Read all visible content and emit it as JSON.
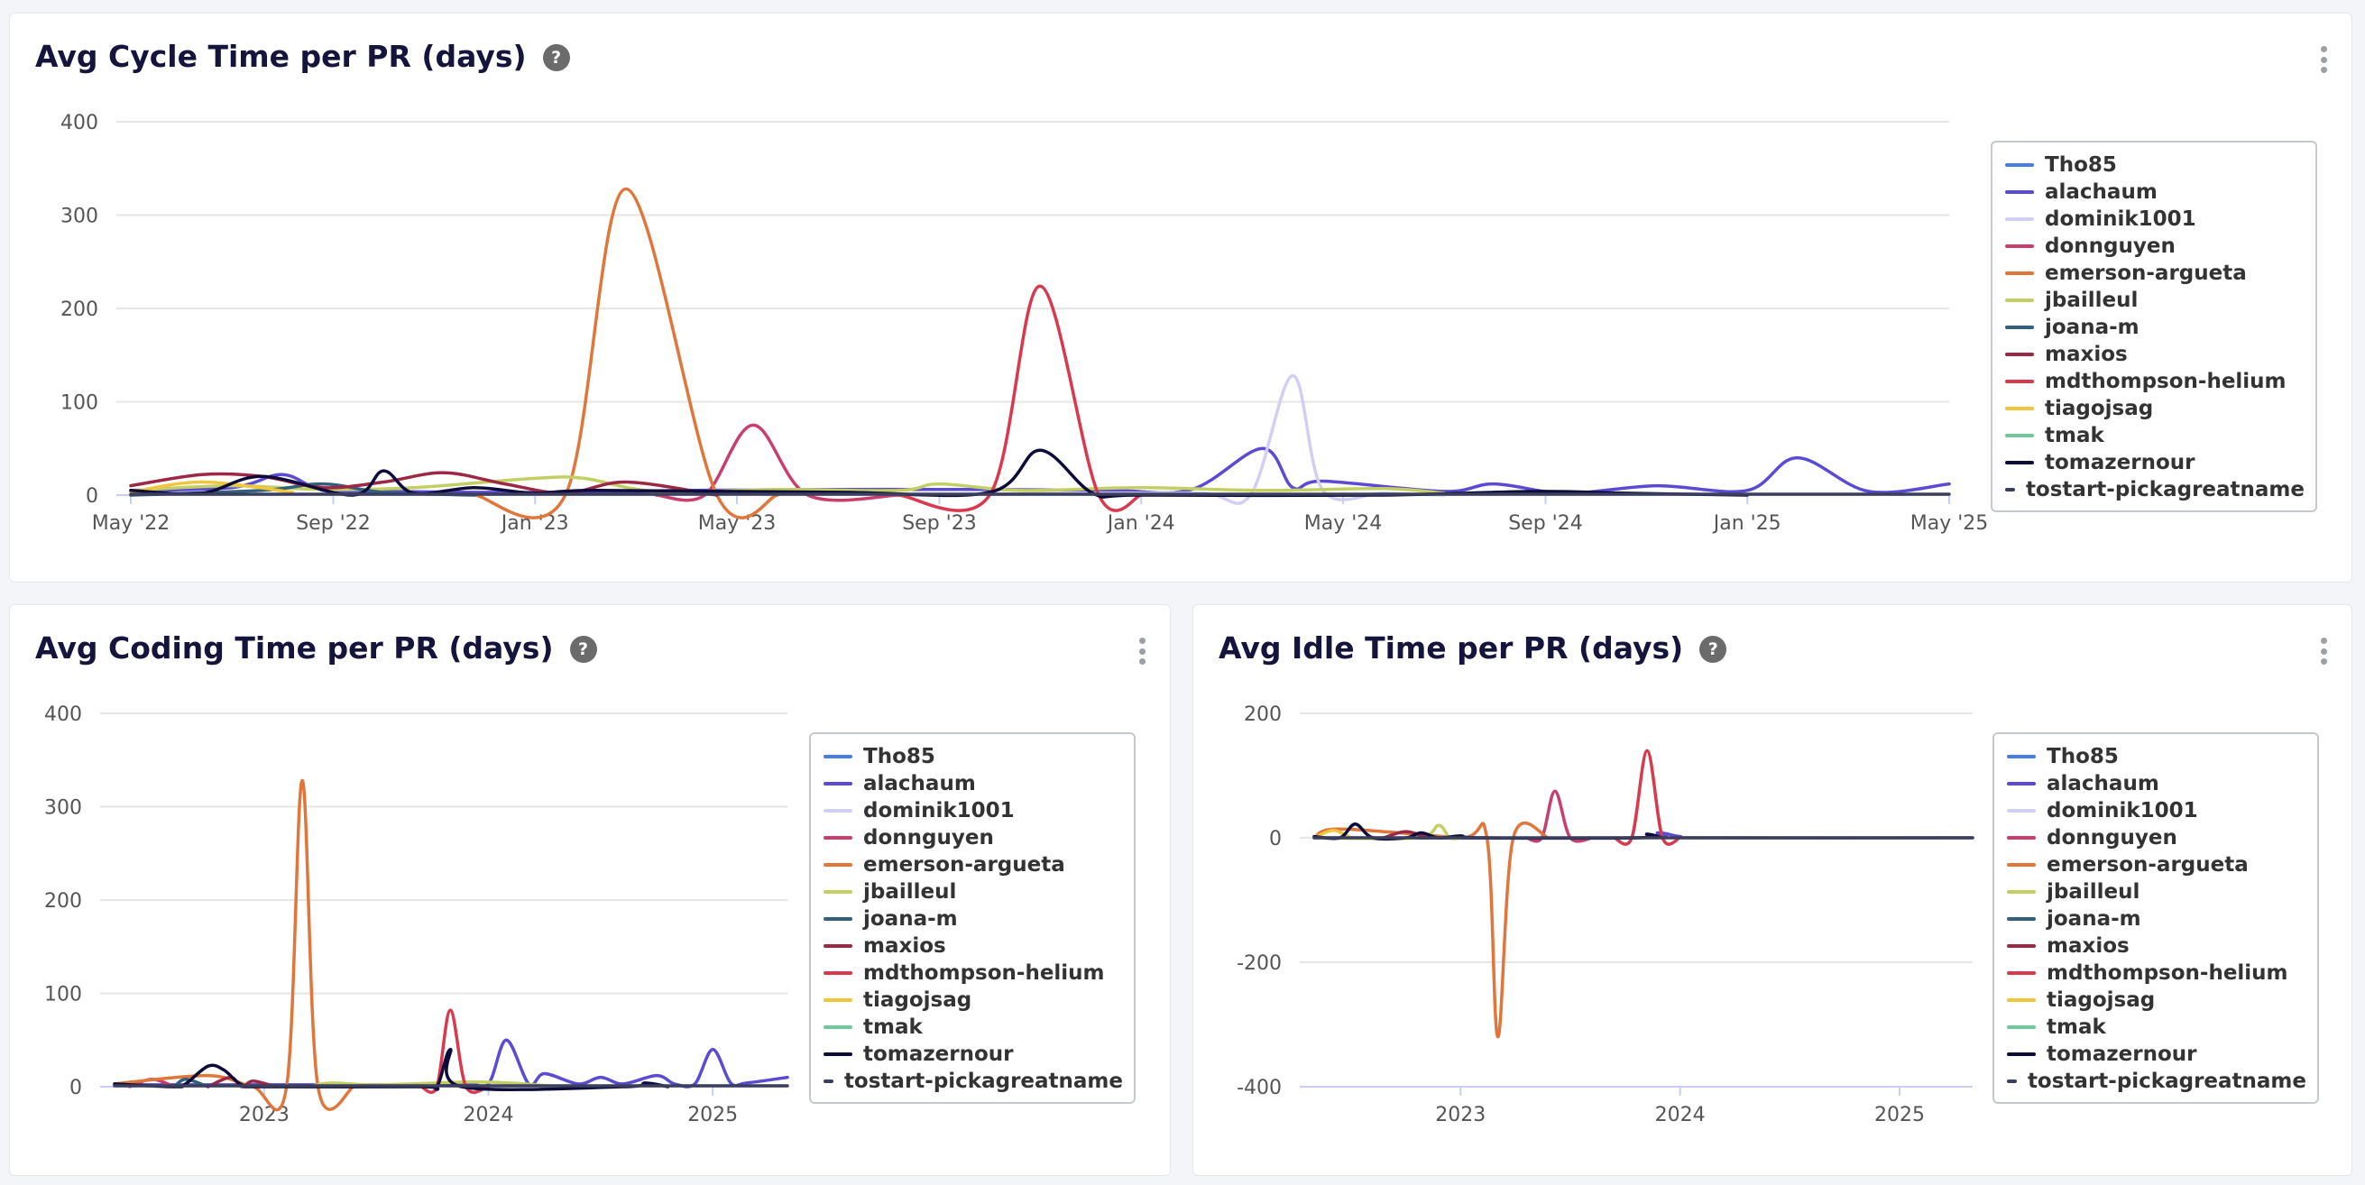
{
  "series_colors": {
    "Tho85": "#4a7de3",
    "alachaum": "#5b4bd4",
    "dominik1001": "#d2cff5",
    "donnguyen": "#c93d6f",
    "emerson-argueta": "#e0763a",
    "jbailleul": "#c4cf63",
    "joana-m": "#31607c",
    "maxios": "#9c2845",
    "mdthompson-helium": "#d8394e",
    "tiagojsag": "#f0c63d",
    "tmak": "#6fc99a",
    "tomazernour": "#0d0b3a",
    "tostart-pickagreatname": "#3b3f5e"
  },
  "legend_items": [
    "Tho85",
    "alachaum",
    "dominik1001",
    "donnguyen",
    "emerson-argueta",
    "jbailleul",
    "joana-m",
    "maxios",
    "mdthompson-helium",
    "tiagojsag",
    "tmak",
    "tomazernour",
    "tostart-pickagreatname"
  ],
  "chart_data": [
    {
      "id": "cycle",
      "type": "line",
      "title": "Avg Cycle Time per PR (days)",
      "x_ticks": [
        {
          "value": 2022.333,
          "label": "May '22"
        },
        {
          "value": 2022.667,
          "label": "Sep '22"
        },
        {
          "value": 2023.0,
          "label": "Jan '23"
        },
        {
          "value": 2023.333,
          "label": "May '23"
        },
        {
          "value": 2023.667,
          "label": "Sep '23"
        },
        {
          "value": 2024.0,
          "label": "Jan '24"
        },
        {
          "value": 2024.333,
          "label": "May '24"
        },
        {
          "value": 2024.667,
          "label": "Sep '24"
        },
        {
          "value": 2025.0,
          "label": "Jan '25"
        },
        {
          "value": 2025.333,
          "label": "May '25"
        }
      ],
      "y_ticks": [
        0,
        100,
        200,
        300,
        400
      ],
      "xlim": [
        2022.333,
        2025.333
      ],
      "ylim": [
        0,
        400
      ],
      "legend": "right",
      "grid": true,
      "series": [
        {
          "name": "alachaum",
          "x": [
            2022.333,
            2022.5,
            2022.583,
            2022.65,
            2022.75,
            2022.9,
            2023.1,
            2023.25,
            2023.5,
            2023.75,
            2023.95,
            2024.083,
            2024.2,
            2024.25,
            2024.3,
            2024.5,
            2024.583,
            2024.7,
            2024.85,
            2025.0,
            2025.083,
            2025.2,
            2025.333
          ],
          "y": [
            5,
            8,
            22,
            5,
            4,
            3,
            3,
            5,
            6,
            6,
            5,
            6,
            50,
            8,
            15,
            4,
            12,
            2,
            10,
            5,
            40,
            4,
            12
          ]
        },
        {
          "name": "dominik1001",
          "x": [
            2023.6,
            2023.9,
            2024.1,
            2024.18,
            2024.25,
            2024.3,
            2024.4,
            2024.5
          ],
          "y": [
            0,
            2,
            2,
            0,
            128,
            5,
            2,
            0
          ]
        },
        {
          "name": "donnguyen",
          "x": [
            2023.2,
            2023.28,
            2023.36,
            2023.45,
            2023.6
          ],
          "y": [
            0,
            0,
            75,
            0,
            0
          ]
        },
        {
          "name": "emerson-argueta",
          "x": [
            2022.9,
            2023.05,
            2023.15,
            2023.3,
            2023.4
          ],
          "y": [
            0,
            0,
            328,
            0,
            0
          ]
        },
        {
          "name": "jbailleul",
          "x": [
            2022.333,
            2022.5,
            2022.65,
            2022.8,
            2023.0,
            2023.08,
            2023.2,
            2023.4,
            2023.6,
            2023.667,
            2023.8,
            2024.0,
            2024.2,
            2024.4,
            2024.5
          ],
          "y": [
            5,
            10,
            6,
            8,
            18,
            18,
            4,
            6,
            5,
            12,
            5,
            8,
            5,
            7,
            2
          ]
        },
        {
          "name": "joana-m",
          "x": [
            2022.333,
            2022.55,
            2022.65,
            2022.75,
            2022.9
          ],
          "y": [
            0,
            5,
            12,
            3,
            0
          ]
        },
        {
          "name": "maxios",
          "x": [
            2022.333,
            2022.45,
            2022.55,
            2022.65,
            2022.75,
            2022.85,
            2022.95,
            2023.05,
            2023.15,
            2023.3
          ],
          "y": [
            10,
            22,
            20,
            8,
            14,
            24,
            12,
            2,
            14,
            0
          ]
        },
        {
          "name": "mdthompson-helium",
          "x": [
            2023.6,
            2023.75,
            2023.833,
            2023.93,
            2024.0
          ],
          "y": [
            0,
            0,
            224,
            0,
            0
          ]
        },
        {
          "name": "tiagojsag",
          "x": [
            2022.333,
            2022.45,
            2022.6
          ],
          "y": [
            3,
            14,
            3
          ]
        },
        {
          "name": "tomazernour",
          "x": [
            2022.333,
            2022.45,
            2022.55,
            2022.7,
            2022.75,
            2022.8,
            2022.9,
            2023.0,
            2023.1,
            2023.5,
            2023.75,
            2023.833,
            2023.92,
            2024.0,
            2024.4,
            2024.65,
            2024.8,
            2025.0
          ],
          "y": [
            5,
            2,
            20,
            0,
            26,
            2,
            8,
            2,
            5,
            3,
            3,
            48,
            2,
            0,
            0,
            4,
            2,
            0
          ]
        },
        {
          "name": "tostart-pickagreatname",
          "x": [
            2022.333,
            2023.0,
            2024.0,
            2025.333
          ],
          "y": [
            1,
            1,
            1,
            1
          ]
        }
      ]
    },
    {
      "id": "coding",
      "type": "line",
      "title": "Avg Coding Time per PR (days)",
      "x_ticks": [
        {
          "value": 2023.0,
          "label": "2023"
        },
        {
          "value": 2024.0,
          "label": "2024"
        },
        {
          "value": 2025.0,
          "label": "2025"
        }
      ],
      "y_ticks": [
        0,
        100,
        200,
        300,
        400
      ],
      "xlim": [
        2022.333,
        2025.333
      ],
      "ylim": [
        0,
        400
      ],
      "legend": "right",
      "grid": true,
      "series": [
        {
          "name": "alachaum",
          "x": [
            2022.333,
            2023.0,
            2023.5,
            2023.9,
            2024.0,
            2024.08,
            2024.18,
            2024.25,
            2024.4,
            2024.5,
            2024.6,
            2024.75,
            2024.83,
            2024.92,
            2025.0,
            2025.08,
            2025.15,
            2025.333
          ],
          "y": [
            2,
            2,
            2,
            3,
            3,
            50,
            3,
            14,
            3,
            10,
            3,
            12,
            3,
            3,
            40,
            4,
            4,
            10
          ]
        },
        {
          "name": "donnguyen",
          "x": [
            2022.4,
            2022.5,
            2022.6
          ],
          "y": [
            0,
            8,
            0
          ]
        },
        {
          "name": "emerson-argueta",
          "x": [
            2022.333,
            2022.75,
            2022.95,
            2023.1,
            2023.17,
            2023.24,
            2023.4
          ],
          "y": [
            3,
            12,
            0,
            0,
            328,
            0,
            0
          ]
        },
        {
          "name": "jbailleul",
          "x": [
            2023.2,
            2023.3,
            2023.5,
            2023.9,
            2024.1,
            2024.3
          ],
          "y": [
            0,
            4,
            2,
            5,
            4,
            0
          ]
        },
        {
          "name": "joana-m",
          "x": [
            2022.6,
            2022.65,
            2022.75
          ],
          "y": [
            0,
            8,
            0
          ]
        },
        {
          "name": "maxios",
          "x": [
            2022.75,
            2022.85,
            2022.9,
            2022.95,
            2023.05
          ],
          "y": [
            0,
            10,
            0,
            6,
            0
          ]
        },
        {
          "name": "mdthompson-helium",
          "x": [
            2023.7,
            2023.77,
            2023.83,
            2023.9,
            2024.0
          ],
          "y": [
            0,
            0,
            82,
            0,
            0
          ]
        },
        {
          "name": "tomazernour",
          "x": [
            2022.333,
            2022.6,
            2022.65,
            2022.75,
            2022.82,
            2022.9,
            2023.0,
            2023.7,
            2023.77,
            2023.83,
            2023.88,
            2024.6,
            2024.7,
            2024.8
          ],
          "y": [
            3,
            0,
            3,
            22,
            18,
            2,
            0,
            0,
            0,
            40,
            0,
            0,
            4,
            0
          ]
        },
        {
          "name": "tostart-pickagreatname",
          "x": [
            2022.333,
            2023.0,
            2024.0,
            2025.333
          ],
          "y": [
            1,
            1,
            1,
            1
          ]
        }
      ]
    },
    {
      "id": "idle",
      "type": "line",
      "title": "Avg Idle Time per PR (days)",
      "x_ticks": [
        {
          "value": 2023.0,
          "label": "2023"
        },
        {
          "value": 2024.0,
          "label": "2024"
        },
        {
          "value": 2025.0,
          "label": "2025"
        }
      ],
      "y_ticks": [
        -400,
        -200,
        0,
        200
      ],
      "xlim": [
        2022.333,
        2025.333
      ],
      "ylim": [
        -400,
        200
      ],
      "legend": "right",
      "grid": true,
      "series": [
        {
          "name": "alachaum",
          "x": [
            2022.333,
            2023.8,
            2023.9,
            2024.0,
            2024.1,
            2025.333
          ],
          "y": [
            0,
            0,
            8,
            2,
            0,
            0
          ]
        },
        {
          "name": "donnguyen",
          "x": [
            2023.3,
            2023.37,
            2023.43,
            2023.5,
            2023.6
          ],
          "y": [
            0,
            0,
            75,
            0,
            0
          ]
        },
        {
          "name": "emerson-argueta",
          "x": [
            2022.333,
            2022.45,
            2023.0,
            2023.12,
            2023.17,
            2023.24,
            2023.4
          ],
          "y": [
            0,
            14,
            0,
            0,
            -320,
            0,
            0
          ]
        },
        {
          "name": "jbailleul",
          "x": [
            2022.333,
            2022.8,
            2022.9,
            2022.95,
            2023.0
          ],
          "y": [
            0,
            0,
            20,
            0,
            0
          ]
        },
        {
          "name": "maxios",
          "x": [
            2022.65,
            2022.75,
            2022.85
          ],
          "y": [
            0,
            10,
            0
          ]
        },
        {
          "name": "mdthompson-helium",
          "x": [
            2023.7,
            2023.78,
            2023.85,
            2023.92,
            2024.0
          ],
          "y": [
            0,
            0,
            140,
            0,
            0
          ]
        },
        {
          "name": "tiagojsag",
          "x": [
            2022.333,
            2022.42,
            2022.5
          ],
          "y": [
            0,
            12,
            0
          ]
        },
        {
          "name": "tomazernour",
          "x": [
            2022.333,
            2022.45,
            2022.52,
            2022.6,
            2022.75,
            2022.82,
            2022.9,
            2023.0,
            2023.1,
            2023.8,
            2023.85,
            2023.92
          ],
          "y": [
            2,
            0,
            22,
            0,
            0,
            8,
            0,
            3,
            0,
            0,
            6,
            0
          ]
        },
        {
          "name": "tostart-pickagreatname",
          "x": [
            2022.333,
            2023.0,
            2024.0,
            2025.333
          ],
          "y": [
            0,
            0,
            0,
            0
          ]
        }
      ]
    }
  ]
}
